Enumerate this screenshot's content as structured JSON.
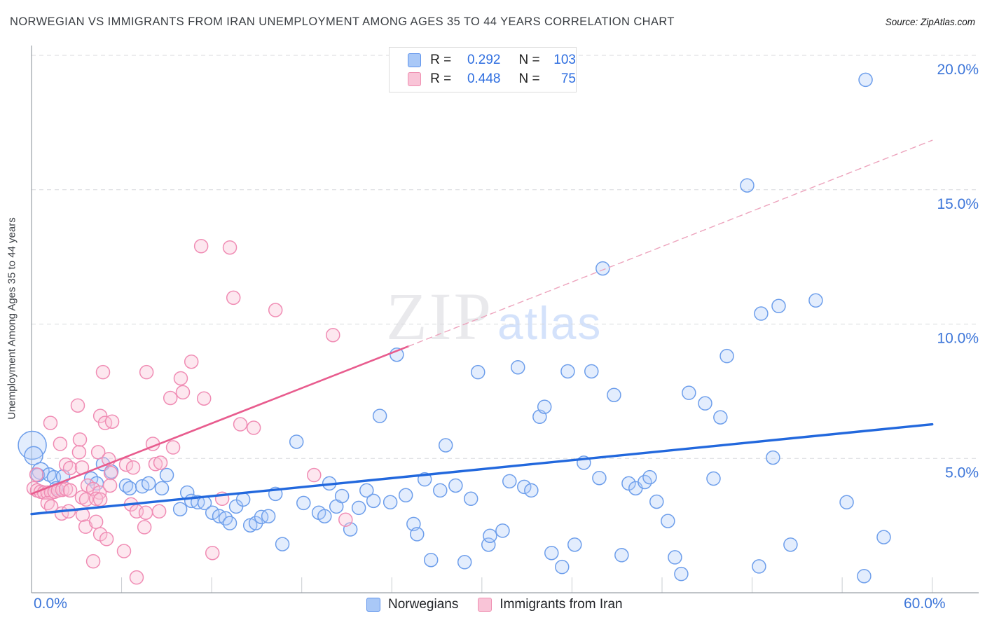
{
  "header": {
    "title": "NORWEGIAN VS IMMIGRANTS FROM IRAN UNEMPLOYMENT AMONG AGES 35 TO 44 YEARS CORRELATION CHART",
    "source": "Source: ZipAtlas.com"
  },
  "y_axis_title": "Unemployment Among Ages 35 to 44 years",
  "watermark": {
    "zip": "ZIP",
    "atlas": "atlas"
  },
  "stats_legend": {
    "rows": [
      {
        "series": "Norwegians",
        "r_label": "R =",
        "r": "0.292",
        "n_label": "N =",
        "n": "103"
      },
      {
        "series": "Immigrants from Iran",
        "r_label": "R =",
        "r": "0.448",
        "n_label": "N =",
        "n": "75"
      }
    ]
  },
  "bottom_legend": [
    {
      "label": "Norwegians"
    },
    {
      "label": "Immigrants from Iran"
    }
  ],
  "chart_data": {
    "type": "scatter",
    "title": "Norwegian vs Immigrants from Iran Unemployment Among Ages 35 to 44 Years",
    "xlabel": "",
    "ylabel": "Unemployment Among Ages 35 to 44 years",
    "xlim": [
      0,
      60
    ],
    "ylim": [
      0,
      20.7
    ],
    "x_tick_labels": {
      "left": "0.0%",
      "right": "60.0%"
    },
    "x_tick_step_pct": 6,
    "grid": true,
    "legend_position": "bottom",
    "yticks": [
      {
        "value": 20,
        "label": "20.0%"
      },
      {
        "value": 15,
        "label": "15.0%"
      },
      {
        "value": 10,
        "label": "10.0%"
      },
      {
        "value": 5,
        "label": "5.0%"
      }
    ],
    "series": [
      {
        "name": "Norwegians",
        "stroke": "#6d9eeb",
        "fill": "rgba(174,203,250,0.35)",
        "points": [
          [
            0.05,
            5.49,
            20
          ],
          [
            0.14,
            5.1,
            13
          ],
          [
            0.61,
            4.53,
            12
          ],
          [
            0.42,
            4.38
          ],
          [
            1.17,
            4.4
          ],
          [
            1.49,
            4.3
          ],
          [
            2.1,
            4.33
          ],
          [
            1.63,
            3.89
          ],
          [
            3.97,
            4.25
          ],
          [
            4.34,
            4.07
          ],
          [
            4.76,
            4.79
          ],
          [
            5.32,
            4.51
          ],
          [
            6.3,
            3.99
          ],
          [
            6.54,
            3.89
          ],
          [
            7.38,
            3.96
          ],
          [
            7.8,
            4.07
          ],
          [
            8.68,
            3.89
          ],
          [
            9.01,
            4.38
          ],
          [
            10.37,
            3.73
          ],
          [
            9.9,
            3.11
          ],
          [
            10.65,
            3.42
          ],
          [
            11.07,
            3.37
          ],
          [
            11.53,
            3.34
          ],
          [
            12.05,
            2.98
          ],
          [
            12.51,
            2.85
          ],
          [
            12.93,
            2.77
          ],
          [
            13.21,
            2.59
          ],
          [
            13.63,
            3.21
          ],
          [
            14.1,
            3.47
          ],
          [
            14.57,
            2.51
          ],
          [
            14.94,
            2.59
          ],
          [
            15.31,
            2.82
          ],
          [
            15.78,
            2.85
          ],
          [
            16.25,
            3.68
          ],
          [
            16.71,
            1.81
          ],
          [
            17.65,
            5.62
          ],
          [
            18.12,
            3.34
          ],
          [
            19.14,
            2.98
          ],
          [
            19.52,
            2.85
          ],
          [
            19.84,
            4.07
          ],
          [
            20.31,
            3.21
          ],
          [
            20.68,
            3.6
          ],
          [
            21.24,
            2.36
          ],
          [
            21.8,
            3.16
          ],
          [
            22.32,
            3.81
          ],
          [
            22.78,
            3.42
          ],
          [
            23.2,
            6.58
          ],
          [
            23.9,
            3.37
          ],
          [
            24.33,
            8.86
          ],
          [
            24.93,
            3.63
          ],
          [
            25.45,
            2.56
          ],
          [
            25.68,
            2.18
          ],
          [
            26.19,
            4.22
          ],
          [
            26.61,
            1.22
          ],
          [
            27.22,
            3.81
          ],
          [
            27.59,
            5.49
          ],
          [
            28.25,
            3.99
          ],
          [
            28.85,
            1.14
          ],
          [
            29.27,
            3.5
          ],
          [
            29.74,
            8.21
          ],
          [
            30.44,
            1.79
          ],
          [
            30.54,
            2.12
          ],
          [
            31.38,
            2.31
          ],
          [
            31.84,
            4.15
          ],
          [
            32.4,
            8.39
          ],
          [
            32.82,
            3.94
          ],
          [
            33.29,
            3.81
          ],
          [
            33.85,
            6.55
          ],
          [
            34.17,
            6.92
          ],
          [
            34.64,
            1.48
          ],
          [
            35.34,
            0.96
          ],
          [
            35.72,
            8.24
          ],
          [
            36.18,
            1.79
          ],
          [
            36.79,
            4.84
          ],
          [
            37.3,
            8.24
          ],
          [
            37.82,
            4.27
          ],
          [
            38.05,
            12.07
          ],
          [
            38.8,
            7.36
          ],
          [
            39.31,
            1.4
          ],
          [
            39.78,
            4.07
          ],
          [
            40.24,
            3.89
          ],
          [
            40.85,
            4.12
          ],
          [
            41.18,
            4.3
          ],
          [
            41.64,
            3.39
          ],
          [
            42.39,
            2.67
          ],
          [
            42.86,
            1.32
          ],
          [
            43.28,
            0.7
          ],
          [
            43.79,
            7.44
          ],
          [
            44.87,
            7.05
          ],
          [
            45.43,
            4.25
          ],
          [
            45.89,
            6.53
          ],
          [
            46.32,
            8.81
          ],
          [
            47.67,
            15.16
          ],
          [
            48.46,
            0.98
          ],
          [
            48.6,
            10.39
          ],
          [
            49.39,
            5.03
          ],
          [
            49.77,
            10.67
          ],
          [
            50.56,
            1.79
          ],
          [
            52.24,
            10.88
          ],
          [
            54.3,
            3.37
          ],
          [
            55.46,
            0.62
          ],
          [
            55.56,
            19.09
          ],
          [
            56.77,
            2.07
          ]
        ]
      },
      {
        "name": "Immigrants from Iran",
        "stroke": "#f08cb4",
        "fill": "rgba(249,196,215,0.4)",
        "points": [
          [
            11.3,
            12.9
          ],
          [
            13.21,
            12.85
          ],
          [
            13.45,
            10.98
          ],
          [
            16.25,
            10.52
          ],
          [
            20.08,
            9.59
          ],
          [
            10.65,
            8.6
          ],
          [
            4.76,
            8.21
          ],
          [
            7.66,
            8.21
          ],
          [
            9.94,
            7.98
          ],
          [
            10.08,
            7.46
          ],
          [
            9.25,
            7.25
          ],
          [
            11.49,
            7.23
          ],
          [
            3.08,
            6.97
          ],
          [
            1.26,
            6.32
          ],
          [
            4.58,
            6.58
          ],
          [
            4.9,
            6.32
          ],
          [
            5.37,
            6.37
          ],
          [
            1.91,
            5.54
          ],
          [
            3.22,
            5.7
          ],
          [
            3.17,
            5.23
          ],
          [
            4.44,
            5.23
          ],
          [
            2.29,
            4.77
          ],
          [
            2.57,
            4.64
          ],
          [
            3.36,
            4.66
          ],
          [
            0.33,
            4.4
          ],
          [
            0.14,
            3.89
          ],
          [
            0.37,
            3.81
          ],
          [
            0.61,
            3.76
          ],
          [
            0.84,
            3.73
          ],
          [
            1.07,
            3.73
          ],
          [
            1.31,
            3.73
          ],
          [
            1.54,
            3.76
          ],
          [
            1.77,
            3.81
          ],
          [
            2.05,
            3.83
          ],
          [
            2.29,
            3.86
          ],
          [
            2.57,
            3.81
          ],
          [
            3.74,
            3.99
          ],
          [
            4.11,
            3.86
          ],
          [
            4.53,
            3.73
          ],
          [
            3.36,
            3.55
          ],
          [
            3.64,
            3.47
          ],
          [
            4.3,
            3.5
          ],
          [
            4.58,
            3.47
          ],
          [
            5.14,
            4.97
          ],
          [
            5.28,
            4.46
          ],
          [
            6.3,
            4.77
          ],
          [
            5.23,
            3.99
          ],
          [
            1.07,
            3.34
          ],
          [
            1.31,
            3.21
          ],
          [
            2.01,
            2.95
          ],
          [
            2.47,
            3.03
          ],
          [
            3.41,
            2.9
          ],
          [
            3.6,
            2.46
          ],
          [
            4.3,
            2.64
          ],
          [
            4.58,
            2.18
          ],
          [
            5.0,
            2.0
          ],
          [
            4.11,
            1.17
          ],
          [
            6.16,
            1.55
          ],
          [
            7.0,
            0.57
          ],
          [
            8.08,
            5.54
          ],
          [
            9.43,
            5.41
          ],
          [
            8.26,
            4.79
          ],
          [
            8.59,
            4.84
          ],
          [
            6.77,
            4.66
          ],
          [
            6.63,
            3.29
          ],
          [
            7.0,
            3.03
          ],
          [
            7.61,
            2.98
          ],
          [
            7.52,
            2.44
          ],
          [
            8.5,
            3.03
          ],
          [
            13.91,
            6.27
          ],
          [
            14.8,
            6.14
          ],
          [
            12.7,
            3.5
          ],
          [
            12.05,
            1.48
          ],
          [
            18.82,
            4.38
          ],
          [
            20.92,
            2.72
          ]
        ]
      }
    ],
    "trendlines": [
      {
        "series": "Norwegians",
        "style": "solid",
        "color": "#2268dd",
        "width": 3.4,
        "x1": 0,
        "y1": 2.93,
        "x2": 60,
        "y2": 6.27
      },
      {
        "series": "Immigrants from Iran",
        "style": "solid",
        "color": "#e85c8e",
        "width": 2.6,
        "x1": 0,
        "y1": 3.68,
        "x2": 25.1,
        "y2": 9.17
      },
      {
        "series": "Immigrants from Iran",
        "style": "dashed",
        "color": "#eda4bd",
        "width": 1.4,
        "x1": 25.1,
        "y1": 9.17,
        "x2": 60,
        "y2": 16.84
      }
    ]
  },
  "colors": {
    "axis_label_blue": "#3d76d9",
    "grid": "#d8dadd",
    "axis_line": "#9aa0a6",
    "tick": "#c9cdd1"
  }
}
